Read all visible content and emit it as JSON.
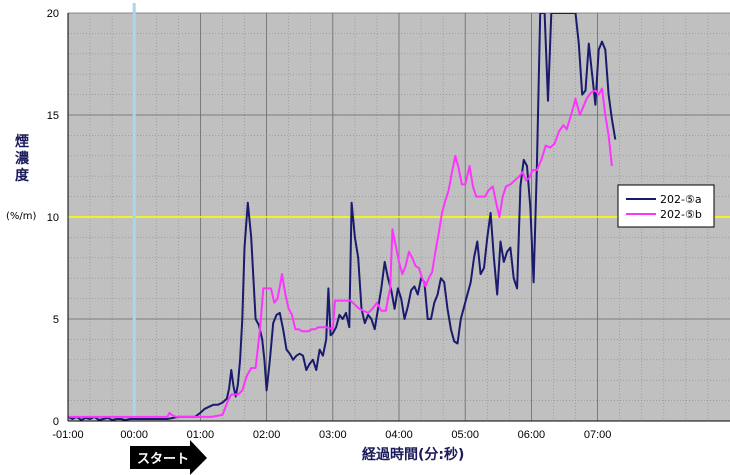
{
  "chart_data": {
    "type": "line",
    "ylabel": "煙濃度",
    "yunit": "(%/m)",
    "xlabel": "経過時間(分:秒)",
    "xlim": [
      -60,
      540
    ],
    "ylim": [
      0,
      20
    ],
    "x_ticks": [
      -60,
      0,
      60,
      120,
      180,
      240,
      300,
      360,
      420
    ],
    "x_tick_labels": [
      "-01:00",
      "00:00",
      "01:00",
      "02:00",
      "03:00",
      "04:00",
      "05:00",
      "06:00",
      "07:00"
    ],
    "y_ticks": [
      0,
      5,
      10,
      15,
      20
    ],
    "y_tick_labels": [
      "0",
      "5",
      "10",
      "15",
      "20"
    ],
    "minor_x_step": 20,
    "minor_y_step": 1,
    "grid": true,
    "legend_position": "right",
    "threshold": {
      "y": 10,
      "color": "#ffff00"
    },
    "start_marker": {
      "x": 0,
      "color": "#a8d8e8",
      "label": "スタート"
    },
    "series": [
      {
        "name": "202-⑤a",
        "color": "#1a1a6e",
        "points": [
          [
            -60,
            0.2
          ],
          [
            -56,
            0.1
          ],
          [
            -52,
            0.2
          ],
          [
            -48,
            0.05
          ],
          [
            -44,
            0.15
          ],
          [
            -40,
            0.1
          ],
          [
            -36,
            0.2
          ],
          [
            -32,
            0.05
          ],
          [
            -28,
            0.1
          ],
          [
            -24,
            0.15
          ],
          [
            -20,
            0.05
          ],
          [
            -16,
            0.1
          ],
          [
            -12,
            0.1
          ],
          [
            -8,
            0.05
          ],
          [
            -4,
            0.1
          ],
          [
            0,
            0.1
          ],
          [
            10,
            0.1
          ],
          [
            20,
            0.1
          ],
          [
            30,
            0.1
          ],
          [
            40,
            0.2
          ],
          [
            50,
            0.2
          ],
          [
            55,
            0.2
          ],
          [
            60,
            0.4
          ],
          [
            64,
            0.6
          ],
          [
            68,
            0.7
          ],
          [
            72,
            0.8
          ],
          [
            76,
            0.8
          ],
          [
            80,
            0.9
          ],
          [
            84,
            1.1
          ],
          [
            86,
            1.6
          ],
          [
            88,
            2.5
          ],
          [
            90,
            1.7
          ],
          [
            92,
            1.2
          ],
          [
            94,
            1.8
          ],
          [
            96,
            3.0
          ],
          [
            98,
            5.0
          ],
          [
            100,
            8.5
          ],
          [
            103,
            10.7
          ],
          [
            106,
            9.0
          ],
          [
            108,
            7.0
          ],
          [
            110,
            5.0
          ],
          [
            113,
            4.7
          ],
          [
            116,
            4.0
          ],
          [
            118,
            3.0
          ],
          [
            120,
            1.5
          ],
          [
            123,
            3.0
          ],
          [
            126,
            4.8
          ],
          [
            129,
            5.2
          ],
          [
            132,
            5.3
          ],
          [
            135,
            4.5
          ],
          [
            138,
            3.5
          ],
          [
            141,
            3.3
          ],
          [
            144,
            3.0
          ],
          [
            147,
            3.2
          ],
          [
            150,
            3.3
          ],
          [
            153,
            3.2
          ],
          [
            156,
            2.5
          ],
          [
            159,
            2.8
          ],
          [
            162,
            3.0
          ],
          [
            165,
            2.5
          ],
          [
            168,
            3.5
          ],
          [
            171,
            3.2
          ],
          [
            174,
            4.0
          ],
          [
            176,
            6.5
          ],
          [
            178,
            4.2
          ],
          [
            180,
            4.3
          ],
          [
            183,
            4.6
          ],
          [
            186,
            5.2
          ],
          [
            189,
            5.0
          ],
          [
            192,
            5.3
          ],
          [
            195,
            4.6
          ],
          [
            197,
            10.7
          ],
          [
            200,
            9.0
          ],
          [
            203,
            8.0
          ],
          [
            206,
            5.5
          ],
          [
            209,
            4.8
          ],
          [
            212,
            5.2
          ],
          [
            215,
            5.0
          ],
          [
            218,
            4.5
          ],
          [
            221,
            5.5
          ],
          [
            224,
            6.5
          ],
          [
            227,
            7.8
          ],
          [
            230,
            7.0
          ],
          [
            233,
            6.4
          ],
          [
            236,
            5.5
          ],
          [
            239,
            6.5
          ],
          [
            242,
            6.0
          ],
          [
            245,
            5.0
          ],
          [
            248,
            5.6
          ],
          [
            251,
            6.4
          ],
          [
            254,
            6.6
          ],
          [
            257,
            6.2
          ],
          [
            260,
            7.0
          ],
          [
            263,
            6.8
          ],
          [
            266,
            5.0
          ],
          [
            269,
            5.0
          ],
          [
            272,
            5.8
          ],
          [
            275,
            6.2
          ],
          [
            278,
            7.0
          ],
          [
            281,
            6.8
          ],
          [
            284,
            5.5
          ],
          [
            287,
            4.5
          ],
          [
            290,
            3.9
          ],
          [
            293,
            3.8
          ],
          [
            296,
            5.0
          ],
          [
            299,
            5.6
          ],
          [
            302,
            6.2
          ],
          [
            305,
            6.8
          ],
          [
            308,
            8.0
          ],
          [
            311,
            8.8
          ],
          [
            314,
            7.2
          ],
          [
            317,
            7.5
          ],
          [
            320,
            9.0
          ],
          [
            323,
            10.2
          ],
          [
            326,
            8.0
          ],
          [
            329,
            6.2
          ],
          [
            332,
            8.8
          ],
          [
            335,
            7.8
          ],
          [
            338,
            8.3
          ],
          [
            341,
            8.5
          ],
          [
            344,
            7.0
          ],
          [
            347,
            6.5
          ],
          [
            350,
            11.5
          ],
          [
            353,
            12.8
          ],
          [
            356,
            12.5
          ],
          [
            359,
            10.5
          ],
          [
            362,
            6.8
          ],
          [
            365,
            12.5
          ],
          [
            368,
            20
          ],
          [
            372,
            20
          ],
          [
            375,
            15.7
          ],
          [
            378,
            20
          ],
          [
            381,
            20
          ],
          [
            400,
            20
          ],
          [
            403,
            18.5
          ],
          [
            406,
            16.0
          ],
          [
            409,
            16.2
          ],
          [
            412,
            18.5
          ],
          [
            415,
            17.0
          ],
          [
            418,
            15.5
          ],
          [
            421,
            18.2
          ],
          [
            424,
            18.6
          ],
          [
            427,
            18.2
          ],
          [
            430,
            16.0
          ],
          [
            433,
            14.8
          ],
          [
            436,
            13.8
          ]
        ]
      },
      {
        "name": "202-⑤b",
        "color": "#ff33ff",
        "points": [
          [
            -60,
            0.2
          ],
          [
            -30,
            0.2
          ],
          [
            0,
            0.2
          ],
          [
            30,
            0.2
          ],
          [
            32,
            0.4
          ],
          [
            34,
            0.3
          ],
          [
            38,
            0.2
          ],
          [
            60,
            0.2
          ],
          [
            70,
            0.2
          ],
          [
            80,
            0.3
          ],
          [
            85,
            1.0
          ],
          [
            88,
            1.3
          ],
          [
            94,
            1.3
          ],
          [
            98,
            1.5
          ],
          [
            102,
            2.2
          ],
          [
            106,
            2.6
          ],
          [
            110,
            2.6
          ],
          [
            114,
            4.5
          ],
          [
            117,
            6.5
          ],
          [
            121,
            6.5
          ],
          [
            124,
            6.5
          ],
          [
            127,
            5.8
          ],
          [
            130,
            6.0
          ],
          [
            134,
            7.2
          ],
          [
            137,
            6.2
          ],
          [
            140,
            5.5
          ],
          [
            143,
            5.2
          ],
          [
            146,
            4.5
          ],
          [
            149,
            4.5
          ],
          [
            152,
            4.4
          ],
          [
            155,
            4.4
          ],
          [
            158,
            4.4
          ],
          [
            161,
            4.5
          ],
          [
            164,
            4.5
          ],
          [
            167,
            4.6
          ],
          [
            170,
            4.6
          ],
          [
            174,
            4.6
          ],
          [
            180,
            4.5
          ],
          [
            182,
            5.9
          ],
          [
            190,
            5.9
          ],
          [
            196,
            5.9
          ],
          [
            200,
            5.7
          ],
          [
            204,
            5.5
          ],
          [
            208,
            5.4
          ],
          [
            212,
            5.3
          ],
          [
            216,
            5.5
          ],
          [
            220,
            5.8
          ],
          [
            224,
            5.4
          ],
          [
            228,
            5.4
          ],
          [
            230,
            6.0
          ],
          [
            232,
            6.5
          ],
          [
            234,
            9.4
          ],
          [
            237,
            8.6
          ],
          [
            240,
            7.8
          ],
          [
            243,
            7.2
          ],
          [
            246,
            7.6
          ],
          [
            249,
            8.3
          ],
          [
            252,
            8.0
          ],
          [
            255,
            7.6
          ],
          [
            258,
            7.5
          ],
          [
            261,
            7.0
          ],
          [
            264,
            6.6
          ],
          [
            267,
            7.0
          ],
          [
            270,
            7.3
          ],
          [
            273,
            8.3
          ],
          [
            276,
            9.2
          ],
          [
            279,
            10.2
          ],
          [
            282,
            10.8
          ],
          [
            285,
            11.3
          ],
          [
            288,
            12.2
          ],
          [
            291,
            13.0
          ],
          [
            294,
            12.4
          ],
          [
            297,
            11.6
          ],
          [
            300,
            11.6
          ],
          [
            304,
            12.5
          ],
          [
            307,
            11.5
          ],
          [
            310,
            11.0
          ],
          [
            314,
            11.0
          ],
          [
            318,
            11.0
          ],
          [
            321,
            11.3
          ],
          [
            325,
            11.5
          ],
          [
            328,
            10.7
          ],
          [
            331,
            10.0
          ],
          [
            334,
            11.0
          ],
          [
            337,
            11.5
          ],
          [
            341,
            11.6
          ],
          [
            345,
            11.8
          ],
          [
            349,
            12.0
          ],
          [
            352,
            12.2
          ],
          [
            355,
            11.8
          ],
          [
            358,
            11.9
          ],
          [
            361,
            12.3
          ],
          [
            365,
            12.3
          ],
          [
            369,
            12.8
          ],
          [
            373,
            13.5
          ],
          [
            377,
            13.4
          ],
          [
            381,
            13.6
          ],
          [
            385,
            14.2
          ],
          [
            389,
            14.5
          ],
          [
            392,
            14.3
          ],
          [
            396,
            15.0
          ],
          [
            400,
            15.8
          ],
          [
            404,
            15.0
          ],
          [
            407,
            15.4
          ],
          [
            410,
            15.8
          ],
          [
            414,
            16.1
          ],
          [
            418,
            16.2
          ],
          [
            421,
            16.0
          ],
          [
            424,
            16.3
          ],
          [
            427,
            15.0
          ],
          [
            430,
            14.0
          ],
          [
            433,
            12.5
          ]
        ]
      }
    ]
  }
}
